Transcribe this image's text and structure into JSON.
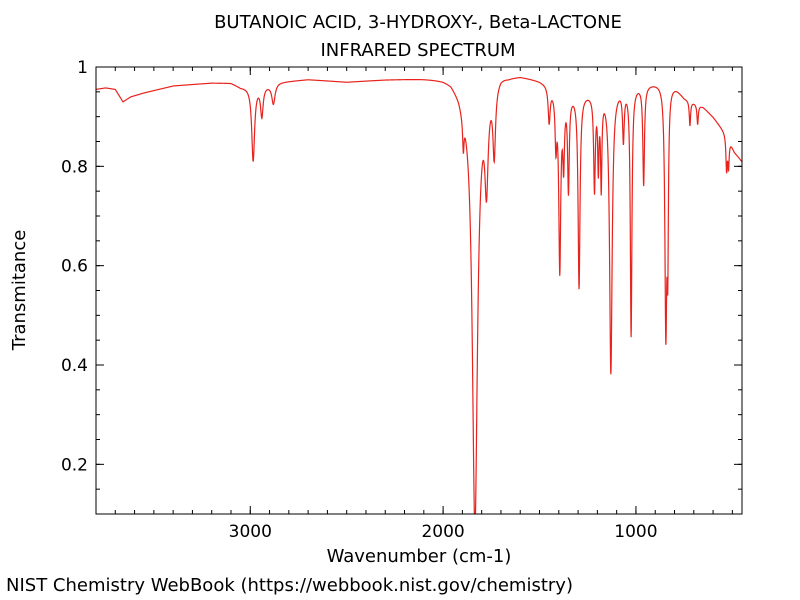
{
  "footer": {
    "credit": "NIST Chemistry WebBook (https://webbook.nist.gov/chemistry)"
  },
  "chart_data": {
    "type": "line",
    "title": [
      "BUTANOIC ACID, 3-HYDROXY-, Beta-LACTONE",
      "INFRARED SPECTRUM"
    ],
    "xlabel": "Wavenumber (cm-1)",
    "ylabel": "Transmitance",
    "xlim": [
      3800,
      450
    ],
    "ylim": [
      0.1,
      1.0
    ],
    "x_ticks": [
      3000,
      2000,
      1000
    ],
    "x_tick_labels": [
      "3000",
      "2000",
      "1000"
    ],
    "y_ticks": [
      0.2,
      0.4,
      0.6,
      0.8,
      1.0
    ],
    "y_tick_labels": [
      "0.2",
      "0.4",
      "0.6",
      "0.8",
      "1"
    ],
    "x_minor_step": 100,
    "y_minor_step": 0.05,
    "grid": false,
    "line_color": "#e8221c",
    "series": [
      {
        "baseline": [
          [
            3800,
            0.955
          ],
          [
            3750,
            0.958
          ],
          [
            3700,
            0.955
          ],
          [
            3660,
            0.93
          ],
          [
            3620,
            0.94
          ],
          [
            3550,
            0.948
          ],
          [
            3400,
            0.962
          ],
          [
            3200,
            0.968
          ],
          [
            3100,
            0.968
          ],
          [
            3050,
            0.96
          ],
          [
            2900,
            0.965
          ],
          [
            2850,
            0.97
          ],
          [
            2700,
            0.975
          ],
          [
            2500,
            0.97
          ],
          [
            2300,
            0.975
          ],
          [
            2100,
            0.978
          ],
          [
            2000,
            0.978
          ],
          [
            1960,
            0.975
          ],
          [
            1920,
            0.96
          ],
          [
            1900,
            0.945
          ],
          [
            1870,
            0.95
          ],
          [
            1700,
            0.99
          ],
          [
            1660,
            0.985
          ],
          [
            1600,
            0.985
          ],
          [
            1500,
            0.975
          ],
          [
            1470,
            0.97
          ],
          [
            1400,
            0.95
          ],
          [
            1200,
            0.95
          ],
          [
            1100,
            0.96
          ],
          [
            1000,
            0.965
          ],
          [
            900,
            0.97
          ],
          [
            830,
            0.975
          ],
          [
            790,
            0.96
          ],
          [
            750,
            0.94
          ],
          [
            700,
            0.93
          ],
          [
            650,
            0.92
          ],
          [
            600,
            0.9
          ],
          [
            560,
            0.88
          ],
          [
            520,
            0.86
          ],
          [
            490,
            0.83
          ],
          [
            450,
            0.81
          ]
        ],
        "peaks": [
          {
            "center": 2985,
            "depth": 0.15,
            "width": 9
          },
          {
            "center": 2940,
            "depth": 0.06,
            "width": 8
          },
          {
            "center": 2880,
            "depth": 0.04,
            "width": 10
          },
          {
            "center": 1895,
            "depth": 0.06,
            "width": 4
          },
          {
            "center": 1835,
            "depth": 0.88,
            "width": 16
          },
          {
            "center": 1775,
            "depth": 0.18,
            "width": 10
          },
          {
            "center": 1735,
            "depth": 0.14,
            "width": 8
          },
          {
            "center": 1450,
            "depth": 0.07,
            "width": 6
          },
          {
            "center": 1415,
            "depth": 0.1,
            "width": 5
          },
          {
            "center": 1395,
            "depth": 0.35,
            "width": 6
          },
          {
            "center": 1375,
            "depth": 0.13,
            "width": 5
          },
          {
            "center": 1350,
            "depth": 0.19,
            "width": 5
          },
          {
            "center": 1295,
            "depth": 0.39,
            "width": 6
          },
          {
            "center": 1215,
            "depth": 0.19,
            "width": 5
          },
          {
            "center": 1195,
            "depth": 0.14,
            "width": 4
          },
          {
            "center": 1180,
            "depth": 0.18,
            "width": 4
          },
          {
            "center": 1130,
            "depth": 0.57,
            "width": 8
          },
          {
            "center": 1065,
            "depth": 0.1,
            "width": 5
          },
          {
            "center": 1025,
            "depth": 0.5,
            "width": 5
          },
          {
            "center": 960,
            "depth": 0.2,
            "width": 5
          },
          {
            "center": 845,
            "depth": 0.49,
            "width": 6
          },
          {
            "center": 835,
            "depth": 0.3,
            "width": 4
          },
          {
            "center": 720,
            "depth": 0.05,
            "width": 4
          },
          {
            "center": 680,
            "depth": 0.04,
            "width": 4
          },
          {
            "center": 530,
            "depth": 0.07,
            "width": 4
          },
          {
            "center": 520,
            "depth": 0.06,
            "width": 4
          }
        ]
      }
    ]
  }
}
